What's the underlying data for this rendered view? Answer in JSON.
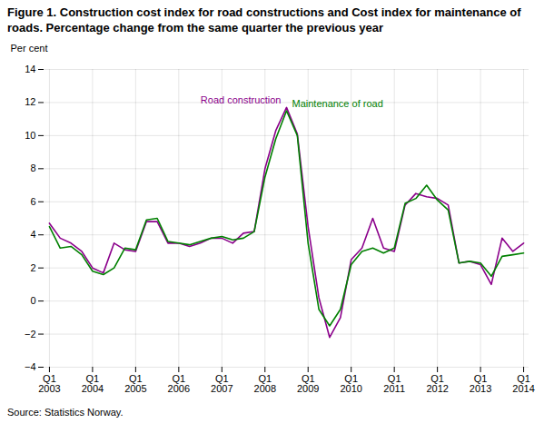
{
  "chart_data": {
    "type": "line",
    "title": "Figure 1. Construction cost index for road constructions and Cost index for maintenance of roads. Percentage change from the same quarter the previous year",
    "ylabel": "Per cent",
    "source": "Source: Statistics Norway.",
    "categories": [
      "Q1\n2003",
      null,
      null,
      null,
      "Q1\n2004",
      null,
      null,
      null,
      "Q1\n2005",
      null,
      null,
      null,
      "Q1\n2006",
      null,
      null,
      null,
      "Q1\n2007",
      null,
      null,
      null,
      "Q1\n2008",
      null,
      null,
      null,
      "Q1\n2009",
      null,
      null,
      null,
      "Q1\n2010",
      null,
      null,
      null,
      "Q1\n2011",
      null,
      null,
      null,
      "Q1\n2012",
      null,
      null,
      null,
      "Q1\n2013",
      null,
      null,
      null,
      "Q1\n2014"
    ],
    "series": [
      {
        "name": "Road construction",
        "color": "#8B008B",
        "values": [
          4.7,
          3.8,
          3.5,
          3.0,
          2.0,
          1.7,
          3.5,
          3.1,
          3.0,
          4.8,
          4.8,
          3.5,
          3.5,
          3.3,
          3.5,
          3.8,
          3.8,
          3.5,
          4.1,
          4.2,
          8.0,
          10.3,
          11.7,
          10.1,
          4.5,
          0.2,
          -2.2,
          -1.0,
          2.5,
          3.2,
          5.0,
          3.2,
          3.0,
          5.8,
          6.5,
          6.3,
          6.2,
          5.8,
          2.3,
          2.4,
          2.2,
          1.0,
          3.8,
          3.0,
          3.5
        ]
      },
      {
        "name": "Maintenance of road",
        "color": "#008000",
        "values": [
          4.5,
          3.2,
          3.3,
          2.8,
          1.8,
          1.6,
          2.0,
          3.2,
          3.1,
          4.9,
          5.0,
          3.6,
          3.5,
          3.4,
          3.6,
          3.8,
          3.9,
          3.7,
          3.8,
          4.2,
          7.5,
          9.8,
          11.5,
          10.0,
          3.5,
          -0.5,
          -1.5,
          -0.5,
          2.2,
          3.0,
          3.2,
          2.9,
          3.2,
          5.9,
          6.2,
          7.0,
          6.1,
          5.5,
          2.3,
          2.4,
          2.3,
          1.5,
          2.7,
          2.8,
          2.9
        ]
      }
    ],
    "ylim": [
      -4,
      14
    ],
    "yticks": [
      -4,
      -2,
      0,
      2,
      4,
      6,
      8,
      10,
      12,
      14
    ],
    "grid": true
  }
}
